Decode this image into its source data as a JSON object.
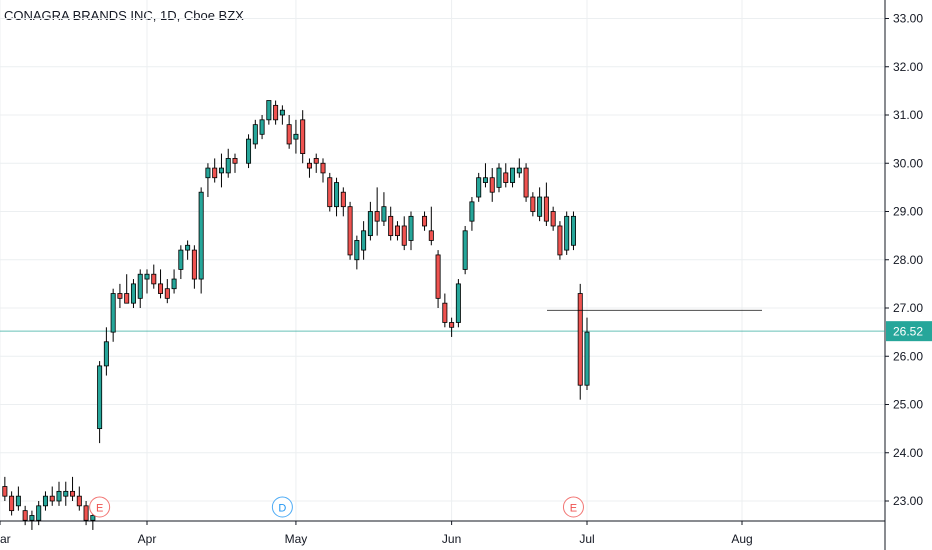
{
  "header": {
    "title": "CONAGRA BRANDS INC, 1D, Cboe BZX"
  },
  "colors": {
    "up": "#26a69a",
    "down": "#ef5350",
    "candle_outline": "#000000",
    "grid": "#eceff1",
    "axis_line": "#131722",
    "price_line": "#26a69a",
    "price_badge_bg": "#26a69a",
    "price_badge_text": "#ffffff",
    "drawn_line": "#000000",
    "earnings": "#ef5350",
    "dividend": "#2196f3"
  },
  "chart_data": {
    "type": "candlestick",
    "title": "CONAGRA BRANDS INC, 1D, Cboe BZX",
    "y_axis": {
      "position": "right",
      "ylim": [
        22.6,
        33.3
      ],
      "ticks": [
        "23.00",
        "24.00",
        "25.00",
        "26.00",
        "27.00",
        "28.00",
        "29.00",
        "30.00",
        "31.00",
        "32.00",
        "33.00"
      ]
    },
    "x_axis": {
      "tick_labels": [
        "ar",
        "Apr",
        "May",
        "Jun",
        "Jul",
        "Aug"
      ]
    },
    "grid": true,
    "last_price": {
      "value": 26.52,
      "label": "26.52"
    },
    "horizontal_line": {
      "value": 26.95
    },
    "events": [
      {
        "type": "earnings",
        "label": "E",
        "date": "Mar 21"
      },
      {
        "type": "dividend",
        "label": "D",
        "date": "Apr 29"
      },
      {
        "type": "earnings",
        "label": "E",
        "date": "Jun 27"
      }
    ],
    "candles": [
      {
        "date": "Mar 01",
        "o": 23.3,
        "h": 23.5,
        "l": 23.0,
        "c": 23.1
      },
      {
        "date": "Mar 04",
        "o": 23.1,
        "h": 23.2,
        "l": 22.7,
        "c": 22.8
      },
      {
        "date": "Mar 05",
        "o": 22.9,
        "h": 23.3,
        "l": 22.8,
        "c": 23.1
      },
      {
        "date": "Mar 06",
        "o": 22.8,
        "h": 22.9,
        "l": 22.5,
        "c": 22.6
      },
      {
        "date": "Mar 07",
        "o": 22.6,
        "h": 22.8,
        "l": 22.4,
        "c": 22.7
      },
      {
        "date": "Mar 08",
        "o": 22.6,
        "h": 23.0,
        "l": 22.5,
        "c": 22.9
      },
      {
        "date": "Mar 11",
        "o": 22.9,
        "h": 23.2,
        "l": 22.8,
        "c": 23.1
      },
      {
        "date": "Mar 12",
        "o": 23.1,
        "h": 23.3,
        "l": 22.9,
        "c": 23.0
      },
      {
        "date": "Mar 13",
        "o": 23.0,
        "h": 23.4,
        "l": 22.9,
        "c": 23.2
      },
      {
        "date": "Mar 14",
        "o": 23.1,
        "h": 23.4,
        "l": 22.9,
        "c": 23.2
      },
      {
        "date": "Mar 15",
        "o": 23.2,
        "h": 23.5,
        "l": 23.0,
        "c": 23.1
      },
      {
        "date": "Mar 18",
        "o": 23.1,
        "h": 23.3,
        "l": 22.8,
        "c": 22.9
      },
      {
        "date": "Mar 19",
        "o": 22.9,
        "h": 23.0,
        "l": 22.5,
        "c": 22.6
      },
      {
        "date": "Mar 20",
        "o": 22.6,
        "h": 22.8,
        "l": 22.4,
        "c": 22.7
      },
      {
        "date": "Mar 21",
        "o": 24.5,
        "h": 25.9,
        "l": 24.2,
        "c": 25.8
      },
      {
        "date": "Mar 22",
        "o": 25.8,
        "h": 26.6,
        "l": 25.6,
        "c": 26.3
      },
      {
        "date": "Mar 25",
        "o": 26.5,
        "h": 27.4,
        "l": 26.3,
        "c": 27.3
      },
      {
        "date": "Mar 26",
        "o": 27.3,
        "h": 27.5,
        "l": 27.0,
        "c": 27.2
      },
      {
        "date": "Mar 27",
        "o": 27.3,
        "h": 27.7,
        "l": 27.1,
        "c": 27.1
      },
      {
        "date": "Mar 28",
        "o": 27.1,
        "h": 27.6,
        "l": 27.0,
        "c": 27.5
      },
      {
        "date": "Mar 29",
        "o": 27.2,
        "h": 27.8,
        "l": 27.0,
        "c": 27.7
      },
      {
        "date": "Apr 01",
        "o": 27.6,
        "h": 27.8,
        "l": 27.3,
        "c": 27.7
      },
      {
        "date": "Apr 02",
        "o": 27.7,
        "h": 27.9,
        "l": 27.4,
        "c": 27.5
      },
      {
        "date": "Apr 03",
        "o": 27.5,
        "h": 27.8,
        "l": 27.2,
        "c": 27.3
      },
      {
        "date": "Apr 04",
        "o": 27.4,
        "h": 27.6,
        "l": 27.1,
        "c": 27.2
      },
      {
        "date": "Apr 05",
        "o": 27.4,
        "h": 27.8,
        "l": 27.3,
        "c": 27.6
      },
      {
        "date": "Apr 08",
        "o": 27.8,
        "h": 28.3,
        "l": 27.6,
        "c": 28.2
      },
      {
        "date": "Apr 09",
        "o": 28.2,
        "h": 28.4,
        "l": 28.0,
        "c": 28.3
      },
      {
        "date": "Apr 10",
        "o": 28.2,
        "h": 28.3,
        "l": 27.4,
        "c": 27.6
      },
      {
        "date": "Apr 11",
        "o": 27.6,
        "h": 29.5,
        "l": 27.3,
        "c": 29.4
      },
      {
        "date": "Apr 12",
        "o": 29.7,
        "h": 30.0,
        "l": 29.3,
        "c": 29.9
      },
      {
        "date": "Apr 15",
        "o": 29.9,
        "h": 30.1,
        "l": 29.6,
        "c": 29.7
      },
      {
        "date": "Apr 16",
        "o": 29.8,
        "h": 30.2,
        "l": 29.5,
        "c": 29.9
      },
      {
        "date": "Apr 17",
        "o": 29.8,
        "h": 30.3,
        "l": 29.7,
        "c": 30.1
      },
      {
        "date": "Apr 18",
        "o": 30.1,
        "h": 30.2,
        "l": 29.8,
        "c": 30.0
      },
      {
        "date": "Apr 22",
        "o": 30.0,
        "h": 30.6,
        "l": 29.9,
        "c": 30.5
      },
      {
        "date": "Apr 23",
        "o": 30.4,
        "h": 30.9,
        "l": 30.3,
        "c": 30.8
      },
      {
        "date": "Apr 24",
        "o": 30.6,
        "h": 31.0,
        "l": 30.5,
        "c": 30.9
      },
      {
        "date": "Apr 25",
        "o": 30.9,
        "h": 31.3,
        "l": 30.8,
        "c": 31.3
      },
      {
        "date": "Apr 26",
        "o": 31.2,
        "h": 31.3,
        "l": 30.8,
        "c": 30.9
      },
      {
        "date": "Apr 29",
        "o": 31.0,
        "h": 31.2,
        "l": 30.8,
        "c": 31.1
      },
      {
        "date": "Apr 30",
        "o": 30.8,
        "h": 31.0,
        "l": 30.3,
        "c": 30.4
      },
      {
        "date": "May 01",
        "o": 30.5,
        "h": 30.9,
        "l": 30.2,
        "c": 30.6
      },
      {
        "date": "May 02",
        "o": 30.9,
        "h": 31.1,
        "l": 30.0,
        "c": 30.2
      },
      {
        "date": "May 03",
        "o": 30.0,
        "h": 30.1,
        "l": 29.7,
        "c": 29.9
      },
      {
        "date": "May 06",
        "o": 30.1,
        "h": 30.2,
        "l": 29.8,
        "c": 30.0
      },
      {
        "date": "May 07",
        "o": 30.0,
        "h": 30.1,
        "l": 29.6,
        "c": 29.8
      },
      {
        "date": "May 08",
        "o": 29.7,
        "h": 29.8,
        "l": 29.0,
        "c": 29.1
      },
      {
        "date": "May 09",
        "o": 29.1,
        "h": 29.7,
        "l": 28.9,
        "c": 29.6
      },
      {
        "date": "May 10",
        "o": 29.4,
        "h": 29.5,
        "l": 28.9,
        "c": 29.1
      },
      {
        "date": "May 13",
        "o": 29.1,
        "h": 29.2,
        "l": 28.0,
        "c": 28.1
      },
      {
        "date": "May 14",
        "o": 28.0,
        "h": 28.5,
        "l": 27.8,
        "c": 28.4
      },
      {
        "date": "May 15",
        "o": 28.2,
        "h": 28.8,
        "l": 28.0,
        "c": 28.6
      },
      {
        "date": "May 16",
        "o": 28.5,
        "h": 29.2,
        "l": 28.4,
        "c": 29.0
      },
      {
        "date": "May 17",
        "o": 29.0,
        "h": 29.5,
        "l": 28.5,
        "c": 28.8
      },
      {
        "date": "May 20",
        "o": 28.8,
        "h": 29.4,
        "l": 28.7,
        "c": 29.1
      },
      {
        "date": "May 21",
        "o": 28.9,
        "h": 29.1,
        "l": 28.4,
        "c": 28.5
      },
      {
        "date": "May 22",
        "o": 28.7,
        "h": 28.8,
        "l": 28.4,
        "c": 28.5
      },
      {
        "date": "May 23",
        "o": 28.7,
        "h": 28.9,
        "l": 28.2,
        "c": 28.3
      },
      {
        "date": "May 24",
        "o": 28.4,
        "h": 29.0,
        "l": 28.2,
        "c": 28.9
      },
      {
        "date": "May 28",
        "o": 28.9,
        "h": 29.0,
        "l": 28.6,
        "c": 28.7
      },
      {
        "date": "May 29",
        "o": 28.6,
        "h": 29.1,
        "l": 28.3,
        "c": 28.4
      },
      {
        "date": "May 30",
        "o": 28.1,
        "h": 28.2,
        "l": 27.0,
        "c": 27.2
      },
      {
        "date": "May 31",
        "o": 27.1,
        "h": 27.3,
        "l": 26.6,
        "c": 26.7
      },
      {
        "date": "Jun 03",
        "o": 26.7,
        "h": 26.8,
        "l": 26.4,
        "c": 26.6
      },
      {
        "date": "Jun 04",
        "o": 26.7,
        "h": 27.6,
        "l": 26.6,
        "c": 27.5
      },
      {
        "date": "Jun 05",
        "o": 27.8,
        "h": 28.7,
        "l": 27.7,
        "c": 28.6
      },
      {
        "date": "Jun 06",
        "o": 28.8,
        "h": 29.3,
        "l": 28.6,
        "c": 29.2
      },
      {
        "date": "Jun 07",
        "o": 29.3,
        "h": 29.8,
        "l": 29.2,
        "c": 29.7
      },
      {
        "date": "Jun 10",
        "o": 29.6,
        "h": 30.0,
        "l": 29.5,
        "c": 29.7
      },
      {
        "date": "Jun 11",
        "o": 29.7,
        "h": 29.9,
        "l": 29.2,
        "c": 29.4
      },
      {
        "date": "Jun 12",
        "o": 29.5,
        "h": 30.0,
        "l": 29.4,
        "c": 29.9
      },
      {
        "date": "Jun 13",
        "o": 29.8,
        "h": 30.0,
        "l": 29.5,
        "c": 29.6
      },
      {
        "date": "Jun 14",
        "o": 29.6,
        "h": 29.9,
        "l": 29.5,
        "c": 29.9
      },
      {
        "date": "Jun 17",
        "o": 29.8,
        "h": 30.1,
        "l": 29.7,
        "c": 29.9
      },
      {
        "date": "Jun 18",
        "o": 29.9,
        "h": 30.0,
        "l": 29.2,
        "c": 29.3
      },
      {
        "date": "Jun 19",
        "o": 29.3,
        "h": 29.4,
        "l": 28.9,
        "c": 29.0
      },
      {
        "date": "Jun 20",
        "o": 28.9,
        "h": 29.5,
        "l": 28.8,
        "c": 29.3
      },
      {
        "date": "Jun 21",
        "o": 29.3,
        "h": 29.6,
        "l": 28.7,
        "c": 28.8
      },
      {
        "date": "Jun 24",
        "o": 29.0,
        "h": 29.1,
        "l": 28.6,
        "c": 28.7
      },
      {
        "date": "Jun 25",
        "o": 28.7,
        "h": 28.8,
        "l": 28.0,
        "c": 28.1
      },
      {
        "date": "Jun 26",
        "o": 28.2,
        "h": 29.0,
        "l": 28.1,
        "c": 28.9
      },
      {
        "date": "Jun 27",
        "o": 28.3,
        "h": 29.0,
        "l": 28.2,
        "c": 28.9
      },
      {
        "date": "Jun 28",
        "o": 27.3,
        "h": 27.5,
        "l": 25.1,
        "c": 25.4
      },
      {
        "date": "Jul 01",
        "o": 25.4,
        "h": 26.8,
        "l": 25.3,
        "c": 26.5
      }
    ]
  }
}
